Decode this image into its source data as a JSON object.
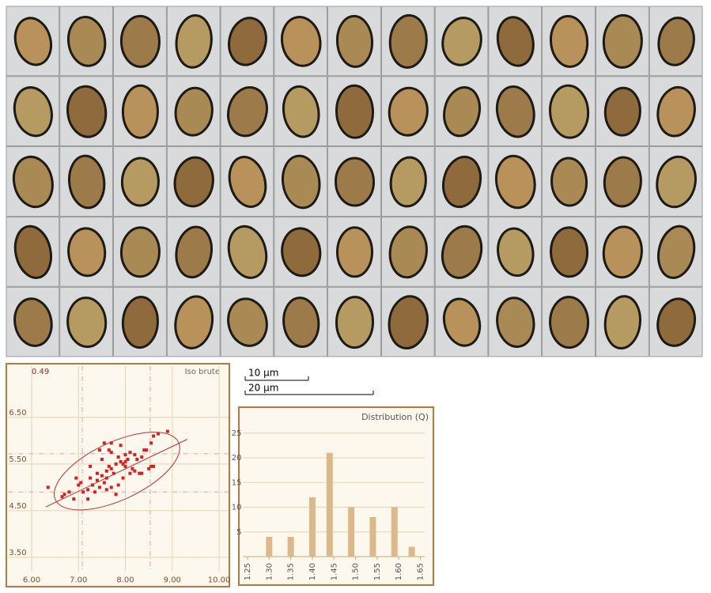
{
  "scale_bars": [
    "10 µm",
    "20 µm"
  ],
  "chart_data": [
    {
      "type": "scatter",
      "title": "Iso brute",
      "annotation": "0.49",
      "color": "#d42020",
      "xlim": [
        5.5,
        10.2
      ],
      "ylim": [
        3.2,
        7.6
      ],
      "xticks": [
        {
          "value": 6,
          "label": "6.00"
        },
        {
          "value": 7,
          "label": "7.00"
        },
        {
          "value": 8,
          "label": "8.00"
        },
        {
          "value": 9,
          "label": "9.00"
        },
        {
          "value": 10,
          "label": "10.00"
        }
      ],
      "yticks": [
        {
          "value": 3.5,
          "label": "3.50"
        },
        {
          "value": 4.5,
          "label": "4.50"
        },
        {
          "value": 5.5,
          "label": "5.50"
        },
        {
          "value": 6.5,
          "label": "6.50"
        }
      ],
      "grid": true,
      "guides_x": [
        7.08,
        8.53
      ],
      "guides_y": [
        4.9,
        5.72
      ],
      "fit_line": {
        "x": [
          6.3,
          9.32
        ],
        "y": [
          4.58,
          6.03
        ]
      },
      "ellipse": {
        "cx": 7.82,
        "cy": 5.35,
        "rx": 1.45,
        "ry": 0.62,
        "angle": -25
      },
      "x": [
        6.35,
        6.65,
        6.7,
        6.8,
        6.9,
        7.0,
        7.05,
        6.95,
        7.1,
        7.2,
        7.25,
        7.3,
        7.4,
        7.45,
        7.5,
        7.45,
        7.55,
        7.6,
        7.65,
        7.7,
        7.7,
        7.75,
        7.8,
        7.85,
        7.9,
        7.95,
        8.0,
        8.0,
        8.05,
        7.9,
        7.65,
        8.1,
        8.15,
        8.2,
        8.25,
        8.3,
        8.35,
        8.4,
        8.5,
        8.55,
        8.6,
        8.55,
        8.6,
        8.7,
        8.9,
        7.55,
        7.4,
        7.6,
        7.7,
        7.85,
        7.95,
        8.1,
        7.35,
        7.25,
        7.7,
        8.0,
        8.35,
        8.45,
        7.2,
        7.8,
        8.2,
        7.6,
        7.5
      ],
      "y": [
        5.0,
        4.8,
        4.85,
        4.9,
        4.75,
        5.05,
        5.1,
        5.2,
        4.9,
        4.75,
        5.2,
        5.05,
        5.3,
        5.0,
        5.6,
        5.8,
        5.95,
        5.2,
        5.45,
        5.4,
        5.75,
        5.3,
        5.5,
        5.65,
        5.55,
        5.5,
        5.55,
        5.7,
        5.6,
        5.9,
        5.8,
        5.75,
        5.4,
        5.35,
        5.6,
        5.3,
        5.3,
        5.8,
        5.4,
        5.45,
        5.45,
        5.95,
        6.1,
        6.15,
        6.2,
        5.1,
        5.15,
        4.95,
        5.0,
        5.05,
        5.2,
        5.3,
        4.9,
        5.45,
        5.95,
        5.45,
        5.65,
        5.8,
        4.95,
        4.85,
        5.7,
        5.35,
        5.25
      ]
    },
    {
      "type": "bar",
      "title": "Distribution (Q)",
      "color": "#dcb98a",
      "x": [
        1.3,
        1.35,
        1.4,
        1.44,
        1.49,
        1.54,
        1.59,
        1.63
      ],
      "values": [
        4,
        4,
        12,
        21,
        10,
        8,
        10,
        2
      ],
      "xlim": [
        1.24,
        1.66
      ],
      "ylim": [
        0,
        28.8
      ],
      "xticks": [
        {
          "value": 1.25,
          "label": "1.25"
        },
        {
          "value": 1.3,
          "label": "1.30"
        },
        {
          "value": 1.35,
          "label": "1.35"
        },
        {
          "value": 1.4,
          "label": "1.40"
        },
        {
          "value": 1.45,
          "label": "1.45"
        },
        {
          "value": 1.5,
          "label": "1.50"
        },
        {
          "value": 1.55,
          "label": "1.55"
        },
        {
          "value": 1.6,
          "label": "1.60"
        },
        {
          "value": 1.65,
          "label": "1.65"
        }
      ],
      "yticks": [
        5,
        10,
        15,
        20,
        25
      ],
      "grid": true
    }
  ]
}
